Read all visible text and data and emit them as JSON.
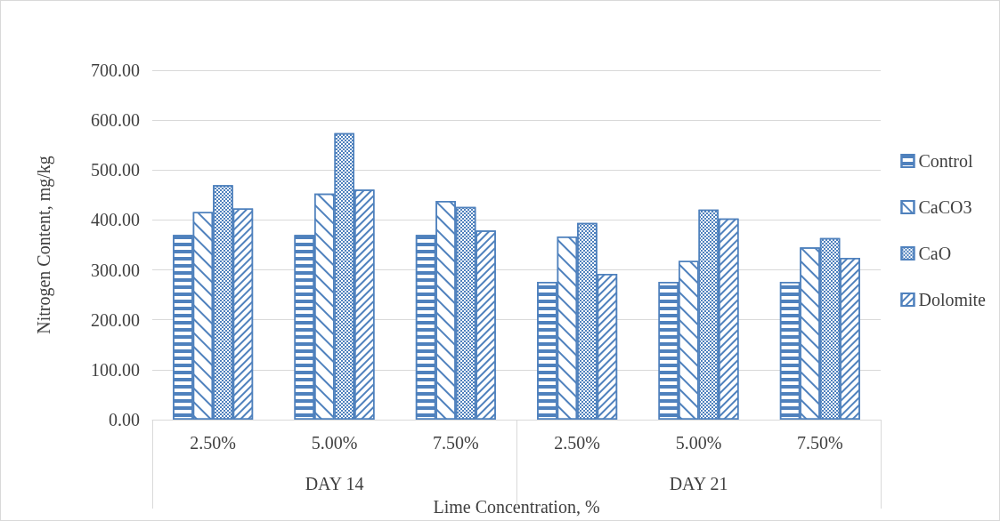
{
  "chart_data": {
    "type": "bar",
    "xlabel": "Lime Concentration, %",
    "ylabel": "Nitrogen Content, mg/kg",
    "categories": [
      "2.50%",
      "5.00%",
      "7.50%",
      "2.50%",
      "5.00%",
      "7.50%"
    ],
    "annotations": [
      "DAY 14",
      "DAY 21"
    ],
    "series": [
      {
        "name": "Control",
        "color": "#4f81bd",
        "values": [
          370,
          370,
          370,
          276,
          276,
          276
        ]
      },
      {
        "name": "CaCO3",
        "color": "#4f81bd",
        "values": [
          416,
          453,
          438,
          367,
          318,
          345
        ]
      },
      {
        "name": "CaO",
        "color": "#4f81bd",
        "values": [
          470,
          574,
          426,
          394,
          421,
          364
        ]
      },
      {
        "name": "Dolomite",
        "color": "#4f81bd",
        "values": [
          423,
          461,
          379,
          292,
          403,
          324
        ]
      }
    ],
    "ylim": [
      0,
      700
    ],
    "yticks": [
      {
        "value": 0,
        "label": "0.00"
      },
      {
        "value": 100,
        "label": "100.00"
      },
      {
        "value": 200,
        "label": "200.00"
      },
      {
        "value": 300,
        "label": "300.00"
      },
      {
        "value": 400,
        "label": "400.00"
      },
      {
        "value": 500,
        "label": "500.00"
      },
      {
        "value": 600,
        "label": "600.00"
      },
      {
        "value": 700,
        "label": "700.00"
      }
    ],
    "grid": "y",
    "legend": "right"
  }
}
